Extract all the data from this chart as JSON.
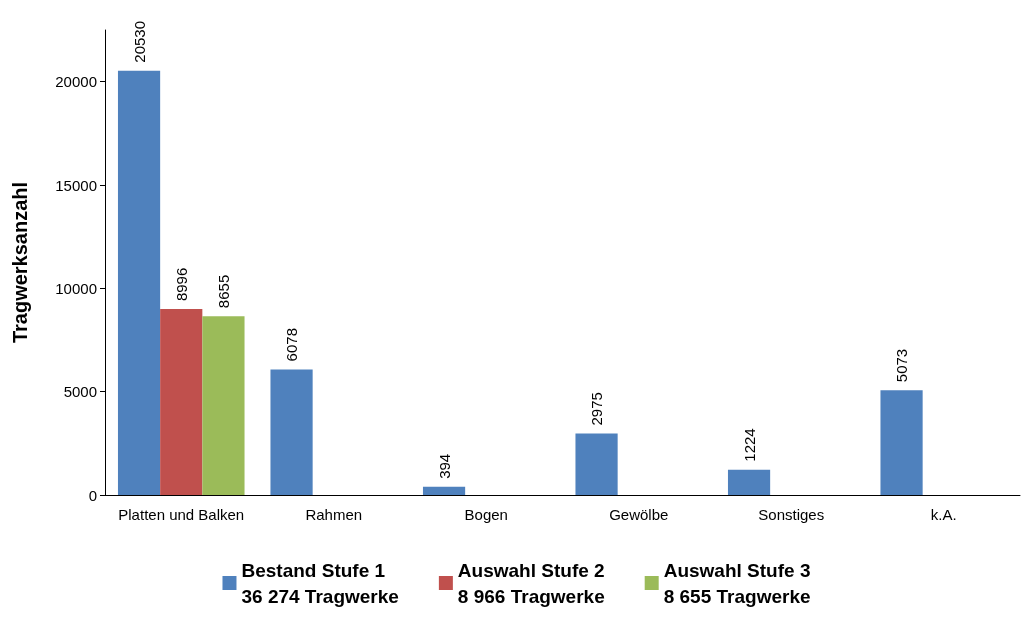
{
  "chart_data": {
    "type": "bar",
    "ylabel": "Tragwerksanzahl",
    "categories": [
      "Platten und Balken",
      "Rahmen",
      "Bogen",
      "Gewölbe",
      "Sonstiges",
      "k.A."
    ],
    "series": [
      {
        "name": "Bestand Stufe 1\n36 274 Tragwerke",
        "color": "#4f81bd",
        "values": [
          20530,
          6078,
          394,
          2975,
          1224,
          5073
        ]
      },
      {
        "name": "Auswahl Stufe 2\n8 966 Tragwerke",
        "color": "#c0504d",
        "values": [
          8996,
          null,
          null,
          null,
          null,
          null
        ]
      },
      {
        "name": "Auswahl Stufe 3\n8 655 Tragwerke",
        "color": "#9bbb59",
        "values": [
          8655,
          null,
          null,
          null,
          null,
          null
        ]
      }
    ],
    "ylim": [
      0,
      22500
    ],
    "yticks": [
      0,
      5000,
      10000,
      15000,
      20000
    ],
    "grid": false,
    "legend": "bottom",
    "data_labels": true
  }
}
